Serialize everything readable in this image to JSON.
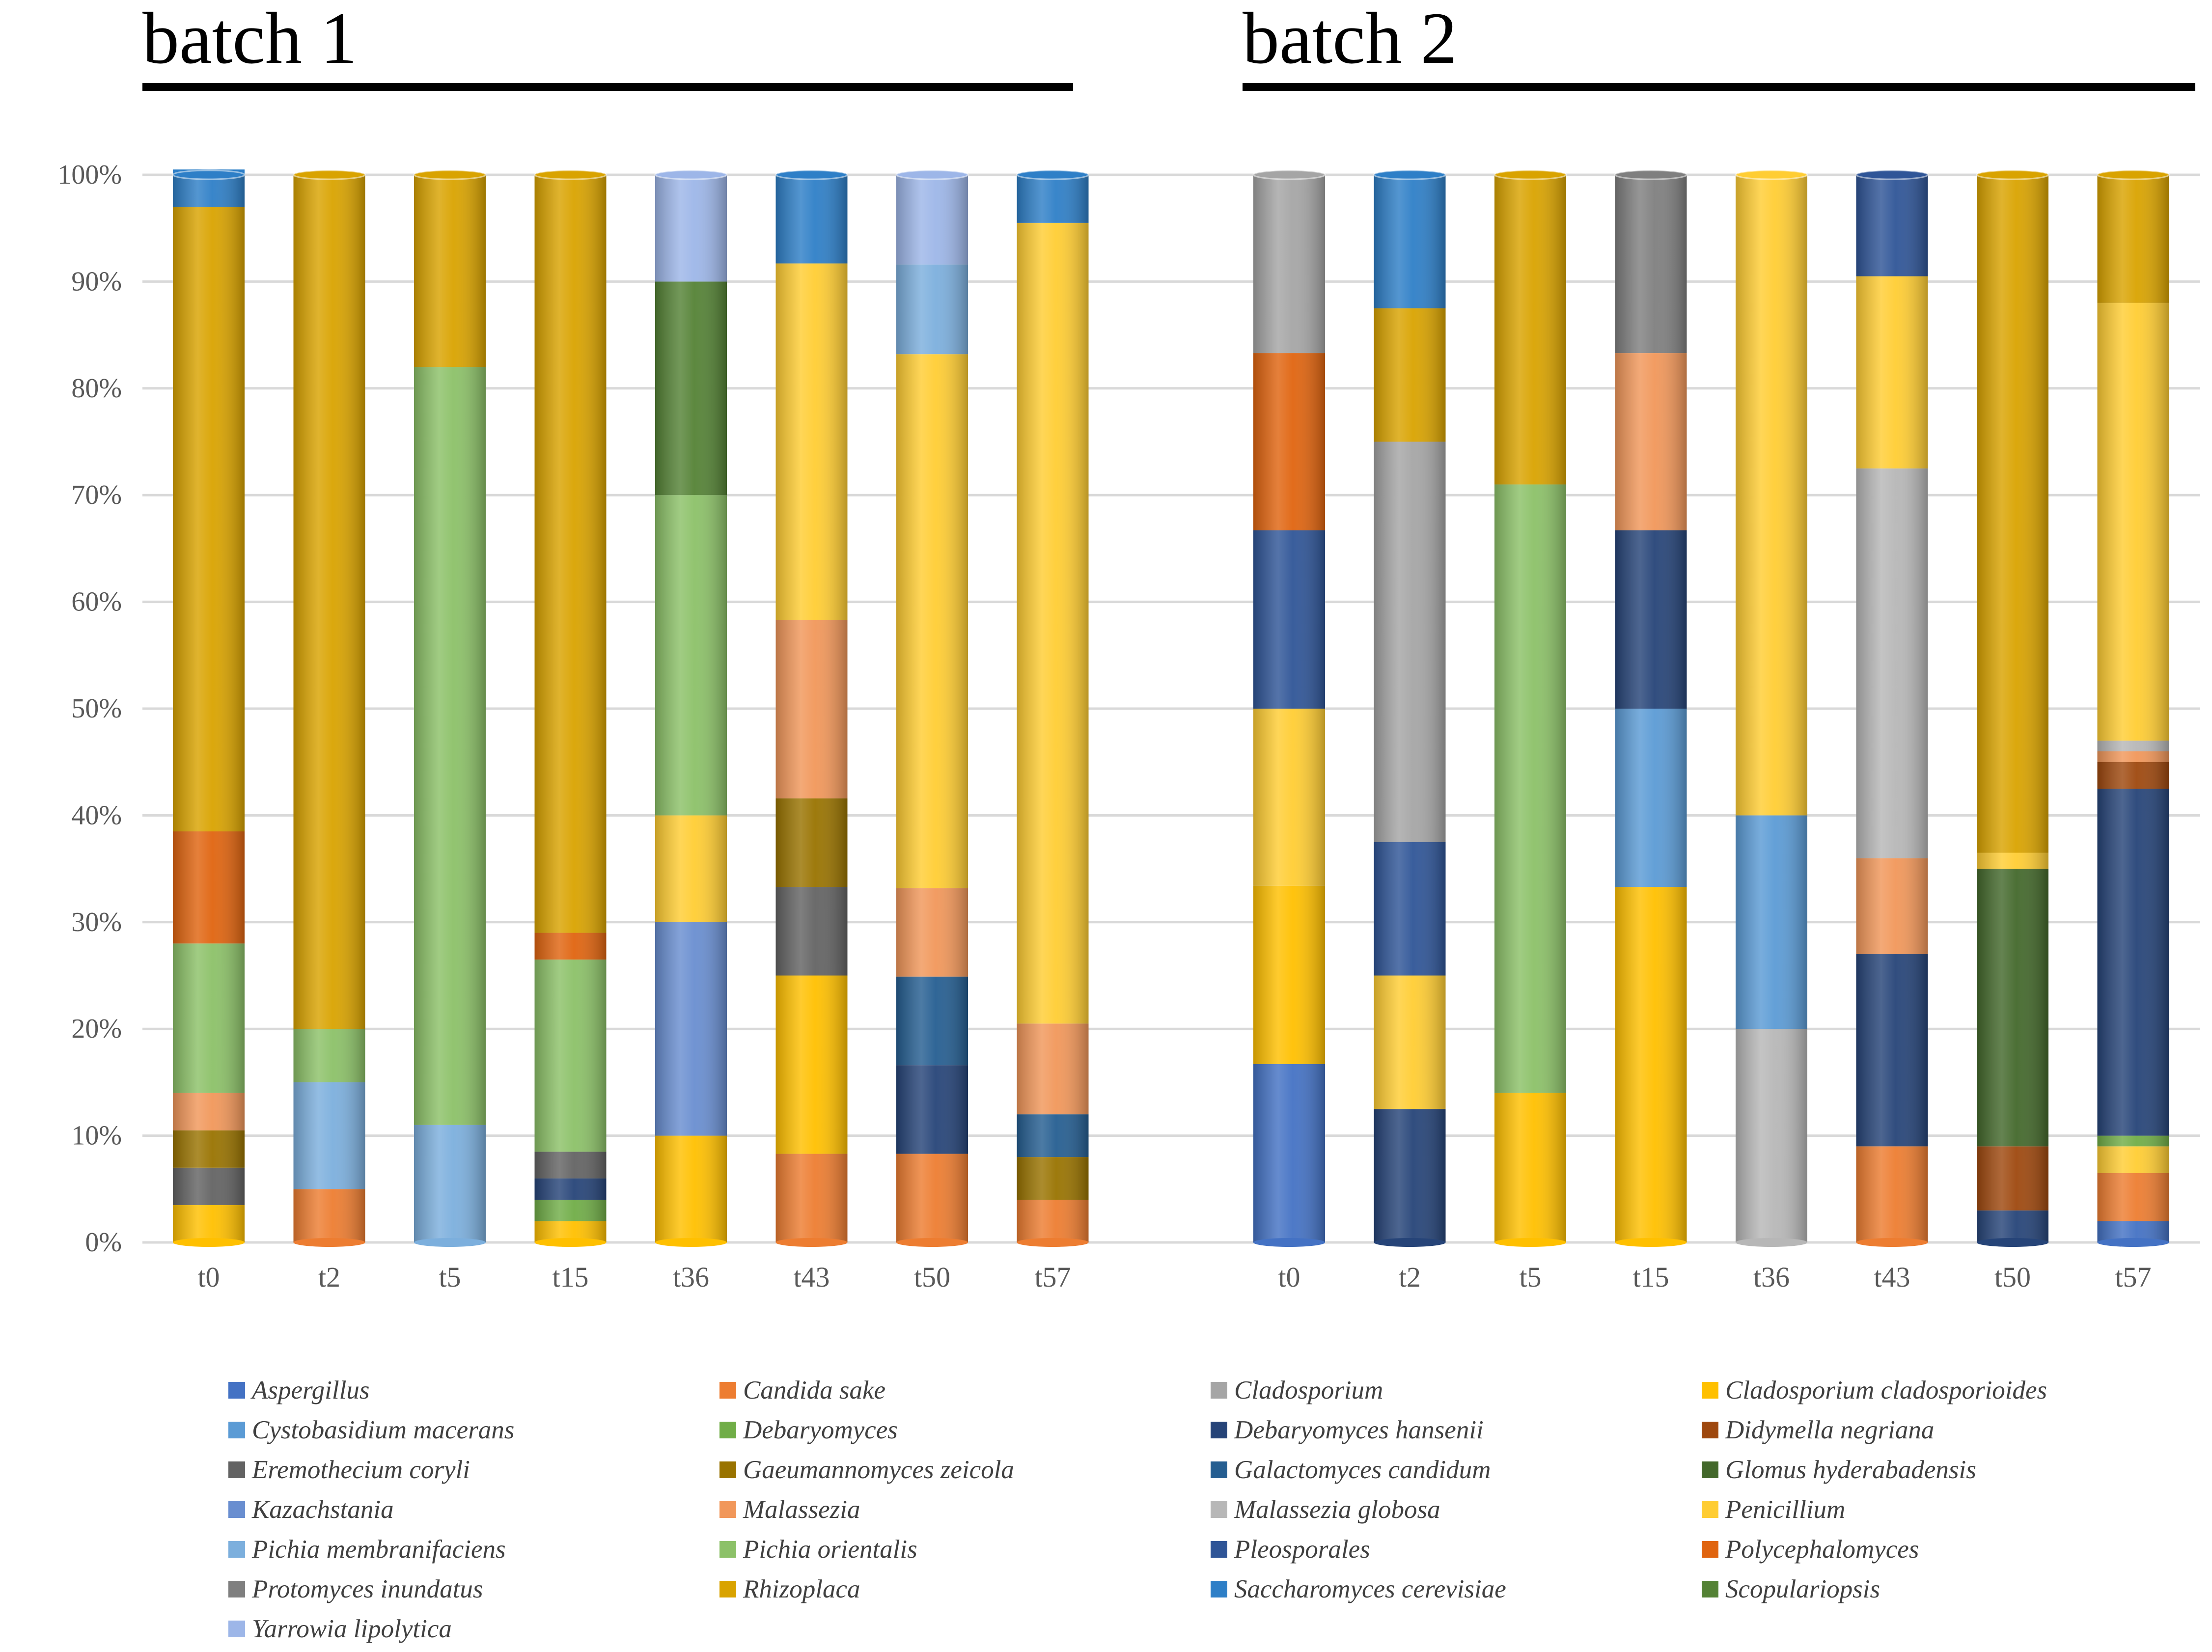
{
  "chart_data": {
    "type": "bar",
    "stacked": true,
    "percent": true,
    "yticks": [
      "0%",
      "10%",
      "20%",
      "30%",
      "40%",
      "50%",
      "60%",
      "70%",
      "80%",
      "90%",
      "100%"
    ],
    "ylim": [
      0,
      100
    ],
    "categories": [
      "t0",
      "t2",
      "t5",
      "t15",
      "t36",
      "t43",
      "t50",
      "t57"
    ],
    "legend_position": "bottom",
    "taxa": [
      {
        "name": "Aspergillus",
        "color": "#4472C4"
      },
      {
        "name": "Candida sake",
        "color": "#ED7D31"
      },
      {
        "name": "Cladosporium",
        "color": "#A5A5A5"
      },
      {
        "name": "Cladosporium cladosporioides",
        "color": "#FFC000"
      },
      {
        "name": "Cystobasidium macerans",
        "color": "#5B9BD5"
      },
      {
        "name": "Debaryomyces",
        "color": "#70AD47"
      },
      {
        "name": "Debaryomyces hansenii",
        "color": "#264478"
      },
      {
        "name": "Didymella negriana",
        "color": "#9E480E"
      },
      {
        "name": "Eremothecium coryli",
        "color": "#636363"
      },
      {
        "name": "Gaeumannomyces zeicola",
        "color": "#997300"
      },
      {
        "name": "Galactomyces candidum",
        "color": "#255E91"
      },
      {
        "name": "Glomus hyderabadensis",
        "color": "#43682B"
      },
      {
        "name": "Kazachstania",
        "color": "#698ED0"
      },
      {
        "name": "Malassezia",
        "color": "#F1975A"
      },
      {
        "name": "Malassezia globosa",
        "color": "#B7B7B7"
      },
      {
        "name": "Penicillium",
        "color": "#FFCD33"
      },
      {
        "name": "Pichia membranifaciens",
        "color": "#7CAFDD"
      },
      {
        "name": "Pichia orientalis",
        "color": "#8CC168"
      },
      {
        "name": "Pleosporales",
        "color": "#2F5597"
      },
      {
        "name": "Polycephalomyces",
        "color": "#E0640F"
      },
      {
        "name": "Protomyces inundatus",
        "color": "#7F7F7F"
      },
      {
        "name": "Rhizoplaca",
        "color": "#D9A300"
      },
      {
        "name": "Saccharomyces cerevisiae",
        "color": "#2E7FC7"
      },
      {
        "name": "Scopulariopsis",
        "color": "#548235"
      },
      {
        "name": "Yarrowia lipolytica",
        "color": "#9DB6E8"
      }
    ],
    "batches": [
      {
        "title": "batch 1",
        "bars": [
          {
            "label": "t0",
            "segments": [
              [
                "Cladosporium cladosporioides",
                3.5
              ],
              [
                "Eremothecium coryli",
                3.5
              ],
              [
                "Gaeumannomyces zeicola",
                3.5
              ],
              [
                "Malassezia",
                3.5
              ],
              [
                "Pichia orientalis",
                14
              ],
              [
                "Polycephalomyces",
                10.5
              ],
              [
                "Rhizoplaca",
                58.5
              ],
              [
                "Saccharomyces cerevisiae",
                3.5
              ]
            ]
          },
          {
            "label": "t2",
            "segments": [
              [
                "Candida sake",
                5
              ],
              [
                "Pichia membranifaciens",
                10
              ],
              [
                "Pichia orientalis",
                5
              ],
              [
                "Rhizoplaca",
                80
              ]
            ]
          },
          {
            "label": "t5",
            "segments": [
              [
                "Pichia membranifaciens",
                11
              ],
              [
                "Pichia orientalis",
                71
              ],
              [
                "Rhizoplaca",
                18
              ]
            ]
          },
          {
            "label": "t15",
            "segments": [
              [
                "Cladosporium cladosporioides",
                2
              ],
              [
                "Debaryomyces",
                2
              ],
              [
                "Debaryomyces hansenii",
                2
              ],
              [
                "Eremothecium coryli",
                2.5
              ],
              [
                "Pichia orientalis",
                18
              ],
              [
                "Polycephalomyces",
                2.5
              ],
              [
                "Rhizoplaca",
                71
              ]
            ]
          },
          {
            "label": "t36",
            "segments": [
              [
                "Cladosporium cladosporioides",
                10
              ],
              [
                "Kazachstania",
                20
              ],
              [
                "Penicillium",
                10
              ],
              [
                "Pichia orientalis",
                30
              ],
              [
                "Scopulariopsis",
                20
              ],
              [
                "Yarrowia lipolytica",
                10
              ]
            ]
          },
          {
            "label": "t43",
            "segments": [
              [
                "Candida sake",
                8.3
              ],
              [
                "Cladosporium cladosporioides",
                16.7
              ],
              [
                "Eremothecium coryli",
                8.3
              ],
              [
                "Gaeumannomyces zeicola",
                8.3
              ],
              [
                "Malassezia",
                16.7
              ],
              [
                "Penicillium",
                33.4
              ],
              [
                "Saccharomyces cerevisiae",
                8.3
              ]
            ]
          },
          {
            "label": "t50",
            "segments": [
              [
                "Candida sake",
                8.3
              ],
              [
                "Debaryomyces hansenii",
                8.3
              ],
              [
                "Galactomyces candidum",
                8.3
              ],
              [
                "Malassezia",
                8.3
              ],
              [
                "Penicillium",
                50
              ],
              [
                "Pichia membranifaciens",
                8.4
              ],
              [
                "Yarrowia lipolytica",
                8.4
              ]
            ]
          },
          {
            "label": "t57",
            "segments": [
              [
                "Candida sake",
                4
              ],
              [
                "Gaeumannomyces zeicola",
                4
              ],
              [
                "Galactomyces candidum",
                4
              ],
              [
                "Malassezia",
                8.5
              ],
              [
                "Penicillium",
                75
              ],
              [
                "Saccharomyces cerevisiae",
                4.5
              ]
            ]
          }
        ]
      },
      {
        "title": "batch 2",
        "bars": [
          {
            "label": "t0",
            "segments": [
              [
                "Aspergillus",
                16.7
              ],
              [
                "Cladosporium cladosporioides",
                16.7
              ],
              [
                "Penicillium",
                16.6
              ],
              [
                "Pleosporales",
                16.7
              ],
              [
                "Polycephalomyces",
                16.6
              ],
              [
                "Cladosporium",
                16.7
              ]
            ]
          },
          {
            "label": "t2",
            "segments": [
              [
                "Debaryomyces hansenii",
                12.5
              ],
              [
                "Penicillium",
                12.5
              ],
              [
                "Pleosporales",
                12.5
              ],
              [
                "Cladosporium",
                37.5
              ],
              [
                "Rhizoplaca",
                12.5
              ],
              [
                "Saccharomyces cerevisiae",
                12.5
              ]
            ]
          },
          {
            "label": "t5",
            "segments": [
              [
                "Cladosporium cladosporioides",
                14
              ],
              [
                "Pichia orientalis",
                57
              ],
              [
                "Rhizoplaca",
                29
              ]
            ]
          },
          {
            "label": "t15",
            "segments": [
              [
                "Cladosporium cladosporioides",
                33.3
              ],
              [
                "Cystobasidium macerans",
                16.7
              ],
              [
                "Debaryomyces hansenii",
                16.7
              ],
              [
                "Malassezia",
                16.6
              ],
              [
                "Protomyces inundatus",
                16.7
              ]
            ]
          },
          {
            "label": "t36",
            "segments": [
              [
                "Malassezia globosa",
                20
              ],
              [
                "Cystobasidium macerans",
                20
              ],
              [
                "Penicillium",
                60
              ]
            ]
          },
          {
            "label": "t43",
            "segments": [
              [
                "Candida sake",
                9
              ],
              [
                "Debaryomyces hansenii",
                18
              ],
              [
                "Malassezia",
                9
              ],
              [
                "Malassezia globosa",
                36.5
              ],
              [
                "Penicillium",
                18
              ],
              [
                "Pleosporales",
                9.5
              ]
            ]
          },
          {
            "label": "t50",
            "segments": [
              [
                "Debaryomyces hansenii",
                3
              ],
              [
                "Didymella negriana",
                6
              ],
              [
                "Glomus hyderabadensis",
                26
              ],
              [
                "Penicillium",
                1.5
              ],
              [
                "Rhizoplaca",
                63.5
              ]
            ]
          },
          {
            "label": "t57",
            "segments": [
              [
                "Aspergillus",
                2
              ],
              [
                "Candida sake",
                4.5
              ],
              [
                "Penicillium",
                2.5
              ],
              [
                "Debaryomyces",
                1
              ],
              [
                "Debaryomyces hansenii",
                32.5
              ],
              [
                "Didymella negriana",
                2.5
              ],
              [
                "Malassezia",
                1
              ],
              [
                "Malassezia globosa",
                1
              ],
              [
                "Penicillium",
                41
              ],
              [
                "Rhizoplaca",
                12
              ]
            ]
          }
        ]
      }
    ]
  }
}
